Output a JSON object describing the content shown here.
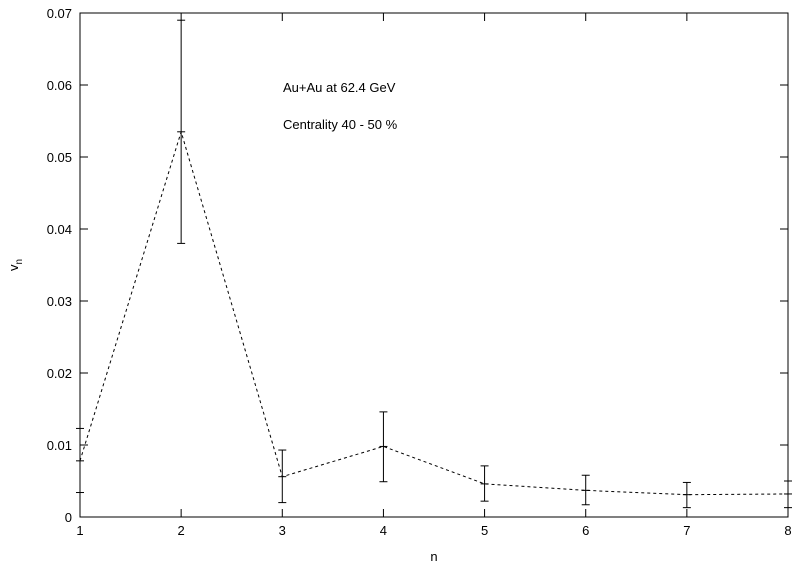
{
  "chart_data": {
    "type": "line",
    "xlabel": "n",
    "ylabel": "v",
    "ylabel_subscript": "n",
    "xlim": [
      1,
      8
    ],
    "ylim": [
      0,
      0.07
    ],
    "x_ticks": [
      "1",
      "2",
      "3",
      "4",
      "5",
      "6",
      "7",
      "8"
    ],
    "y_ticks": [
      "0",
      "0.01",
      "0.02",
      "0.03",
      "0.04",
      "0.05",
      "0.06",
      "0.07"
    ],
    "grid": false,
    "annotations": [
      "Au+Au at 62.4 GeV",
      "Centrality 40 - 50 %"
    ],
    "series": [
      {
        "line_style": "dashed",
        "color": "#000000",
        "x": [
          1,
          2,
          3,
          4,
          5,
          6,
          7,
          8
        ],
        "y": [
          0.0078,
          0.0535,
          0.0056,
          0.0098,
          0.0046,
          0.0037,
          0.0031,
          0.0032
        ],
        "y_err_low": [
          0.0034,
          0.038,
          0.002,
          0.0049,
          0.0022,
          0.0017,
          0.0013,
          0.0013
        ],
        "y_err_high": [
          0.0123,
          0.069,
          0.0093,
          0.0146,
          0.0071,
          0.0058,
          0.0048,
          0.005
        ]
      }
    ]
  }
}
